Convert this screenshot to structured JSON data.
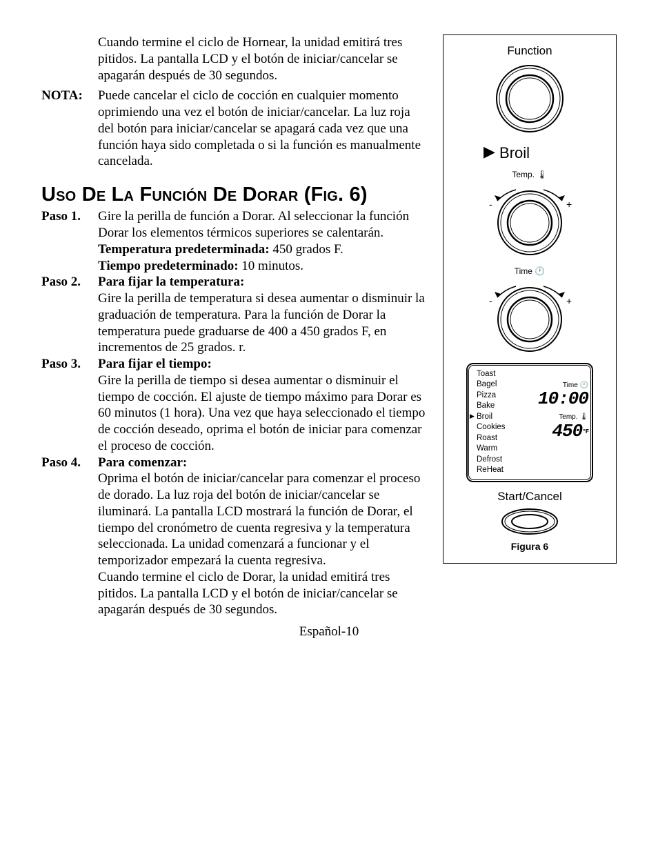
{
  "intro": "Cuando termine el ciclo de Hornear, la unidad emitirá tres pitidos. La pantalla LCD y el botón de iniciar/cancelar se apagarán después de 30 segundos.",
  "nota_label": "NOTA:",
  "nota_text": "Puede cancelar el ciclo de cocción en cualquier momento oprimiendo una vez el botón de iniciar/cancelar. La luz roja del botón para iniciar/cancelar se apagará cada vez que una función haya sido completada o si la función es manualmente cancelada.",
  "heading": "Uso De La Función De Dorar (Fig. 6)",
  "steps": [
    {
      "label": "Paso 1.",
      "lines": [
        {
          "b": false,
          "t": "Gire la perilla de función a Dorar. Al seleccionar la función Dorar los elementos térmicos superiores se calentarán."
        },
        {
          "b": true,
          "t": "Temperatura predeterminada:",
          "after": "  450 grados F."
        },
        {
          "b": true,
          "t": "Tiempo predeterminado:",
          "after": " 10 minutos."
        }
      ]
    },
    {
      "label": "Paso 2.",
      "title": "Para fijar la temperatura:",
      "body": "Gire la perilla de temperatura si desea aumentar o disminuir la graduación de temperatura. Para la función de Dorar la temperatura puede graduarse de 400 a 450 grados F, en incrementos de 25 grados. r."
    },
    {
      "label": "Paso 3.",
      "title": "Para fijar el tiempo:",
      "body": "Gire la perilla de tiempo si desea aumentar o disminuir el tiempo de cocción. El ajuste de tiempo máximo para Dorar es 60 minutos (1 hora). Una vez que haya seleccionado el tiempo de cocción deseado, oprima el botón de iniciar para comenzar el proceso de cocción."
    },
    {
      "label": "Paso 4.",
      "title": "Para comenzar:",
      "body": "Oprima el botón de iniciar/cancelar para comenzar el proceso de dorado. La luz roja del botón de iniciar/cancelar se iluminará. La pantalla LCD mostrará la función de Dorar, el tiempo del cronómetro de cuenta regresiva y la temperatura seleccionada. La unidad comenzará a funcionar y el temporizador empezará la cuenta regresiva.",
      "body2": "Cuando termine el ciclo de Dorar, la unidad emitirá tres pitidos. La pantalla LCD y el botón de iniciar/cancelar se apagarán después de 30 segundos."
    }
  ],
  "page_number": "Español-10",
  "figure": {
    "function_label": "Function",
    "broil_text": "Broil",
    "temp_label": "Temp.",
    "time_label": "Time",
    "minus": "-",
    "plus": "+",
    "lcd_functions": [
      "Toast",
      "Bagel",
      "Pizza",
      "Bake",
      "Broil",
      "Cookies",
      "Roast",
      "Warm",
      "Defrost",
      "ReHeat"
    ],
    "lcd_selected_index": 4,
    "lcd_time_label": "Time",
    "lcd_time_value": "10:00",
    "lcd_temp_label": "Temp.",
    "lcd_temp_value": "450",
    "lcd_temp_unit": "°F",
    "start_cancel": "Start/Cancel",
    "caption": "Figura 6",
    "dial_outer_r": 48,
    "dial_inner_r": 34,
    "stroke": "#000"
  }
}
